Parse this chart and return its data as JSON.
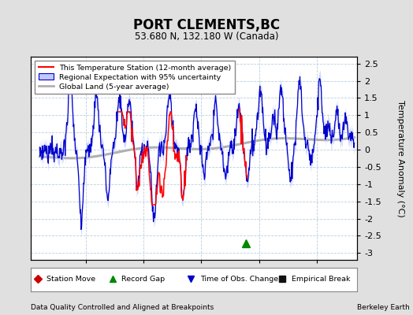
{
  "title": "PORT CLEMENTS,BC",
  "subtitle": "53.680 N, 132.180 W (Canada)",
  "ylabel": "Temperature Anomaly (°C)",
  "xlabel_note": "Data Quality Controlled and Aligned at Breakpoints",
  "credit": "Berkeley Earth",
  "ylim": [
    -3.2,
    2.7
  ],
  "xlim": [
    1950.5,
    2007
  ],
  "yticks": [
    -3,
    -2.5,
    -2,
    -1.5,
    -1,
    -0.5,
    0,
    0.5,
    1,
    1.5,
    2,
    2.5
  ],
  "xticks": [
    1960,
    1970,
    1980,
    1990,
    2000
  ],
  "bg_color": "#e0e0e0",
  "plot_bg_color": "#ffffff",
  "grid_color": "#b8cfe0",
  "station_line_color": "#ff0000",
  "regional_line_color": "#0000cc",
  "regional_fill_color": "#c0c8ff",
  "global_land_color": "#b0b0b0",
  "record_gap_x": 1987.7,
  "record_gap_y": -2.72,
  "station_start": 1965.5,
  "station_end": 1977.5,
  "station_start2": 1986.5,
  "station_end2": 1988.0,
  "legend_labels": [
    "This Temperature Station (12-month average)",
    "Regional Expectation with 95% uncertainty",
    "Global Land (5-year average)"
  ],
  "bottom_markers": [
    {
      "type": "Station Move",
      "color": "#cc0000",
      "marker": "D"
    },
    {
      "type": "Record Gap",
      "color": "#008800",
      "marker": "^"
    },
    {
      "type": "Time of Obs. Change",
      "color": "#0000cc",
      "marker": "v"
    },
    {
      "type": "Empirical Break",
      "color": "#111111",
      "marker": "s"
    }
  ]
}
